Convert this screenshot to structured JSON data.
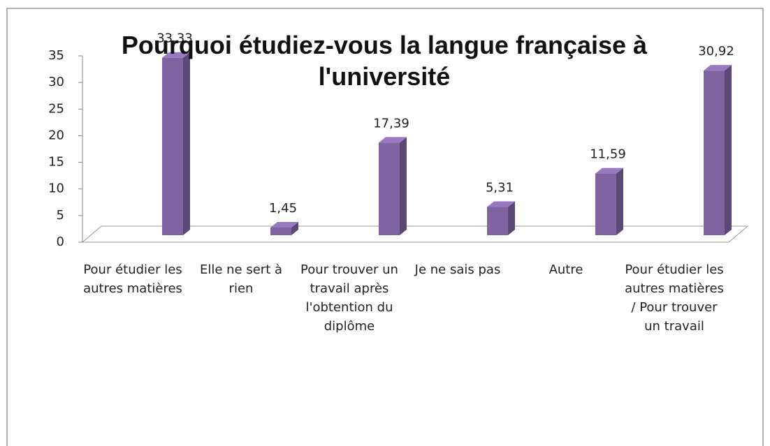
{
  "chart_data": {
    "type": "bar3d",
    "title": "Pourquoi étudiez-vous la langue française à l'université",
    "categories": [
      "Pour étudier les autres matières",
      "Elle ne sert à rien",
      "Pour trouver un travail après l'obtention du diplôme",
      "Je ne sais pas",
      "Autre",
      "Pour étudier les autres matières / Pour trouver un travail"
    ],
    "values": [
      33.33,
      1.45,
      17.39,
      5.31,
      11.59,
      30.92
    ],
    "value_labels": [
      "33,33",
      "1,45",
      "17,39",
      "5,31",
      "11,59",
      "30,92"
    ],
    "color": "#8064a2",
    "ylim": [
      0,
      35
    ],
    "yticks": [
      0,
      5,
      10,
      15,
      20,
      25,
      30,
      35
    ]
  }
}
